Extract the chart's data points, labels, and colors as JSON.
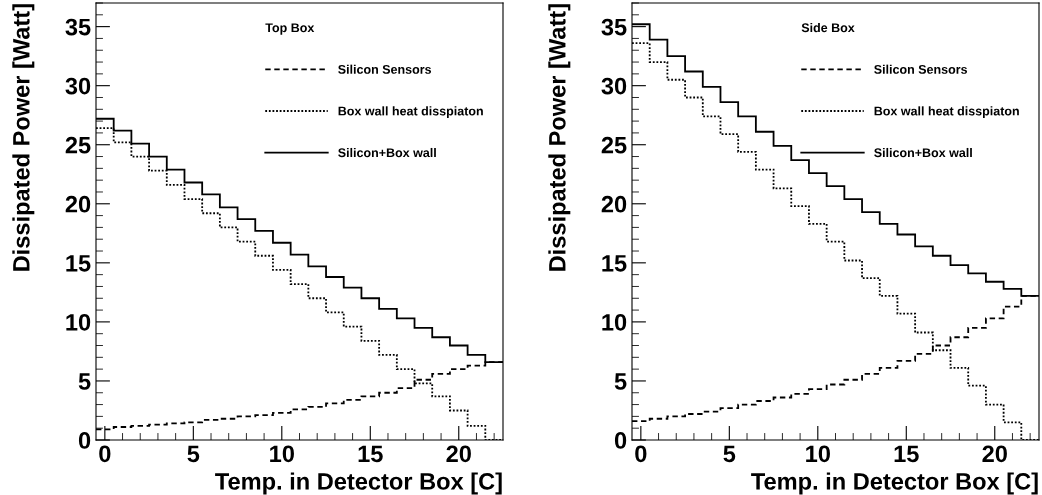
{
  "chart_data": [
    {
      "type": "histogram",
      "legend_title": "Top Box",
      "xlabel": "Temp. in Detector Box [C]",
      "ylabel": "Dissipated Power [Watt]",
      "bins": [
        -0.5,
        0.5,
        1.5,
        2.5,
        3.5,
        4.5,
        5.5,
        6.5,
        7.5,
        8.5,
        9.5,
        10.5,
        11.5,
        12.5,
        13.5,
        14.5,
        15.5,
        16.5,
        17.5,
        18.5,
        19.5,
        20.5,
        21.5,
        22.5
      ],
      "xlim": [
        -0.5,
        22.5
      ],
      "xticks": [
        0,
        5,
        10,
        15,
        20
      ],
      "ylim": [
        0,
        37
      ],
      "yticks": [
        0,
        5,
        10,
        15,
        20,
        25,
        30,
        35
      ],
      "legend": "top right",
      "grid": false,
      "series": [
        {
          "name": "Silicon Sensors",
          "color": "#000000",
          "line_style": "dashed",
          "values": [
            0.9,
            1.1,
            1.2,
            1.3,
            1.4,
            1.5,
            1.7,
            1.8,
            2.0,
            2.1,
            2.3,
            2.6,
            2.8,
            3.1,
            3.4,
            3.7,
            4.0,
            4.4,
            5.1,
            5.6,
            6.0,
            6.3,
            6.6
          ]
        },
        {
          "name": "Box wall heat disspiaton",
          "color": "#000000",
          "line_style": "dotted",
          "values": [
            26.4,
            25.2,
            24.0,
            22.8,
            21.6,
            20.4,
            19.2,
            18.0,
            16.8,
            15.6,
            14.4,
            13.2,
            12.0,
            10.8,
            9.6,
            8.4,
            7.2,
            6.0,
            4.8,
            3.7,
            2.5,
            1.2,
            0
          ]
        },
        {
          "name": "Silicon+Box wall",
          "color": "#000000",
          "line_style": "solid",
          "values": [
            27.2,
            26.2,
            25.1,
            24.0,
            22.9,
            21.8,
            20.8,
            19.7,
            18.7,
            17.7,
            16.7,
            15.7,
            14.7,
            13.8,
            12.9,
            12.0,
            11.1,
            10.3,
            9.5,
            8.7,
            8.0,
            7.2,
            6.6
          ]
        }
      ]
    },
    {
      "type": "histogram",
      "legend_title": "Side Box",
      "xlabel": "Temp. in Detector Box [C]",
      "ylabel": "Dissipated Power [Watt]",
      "bins": [
        -0.5,
        0.5,
        1.5,
        2.5,
        3.5,
        4.5,
        5.5,
        6.5,
        7.5,
        8.5,
        9.5,
        10.5,
        11.5,
        12.5,
        13.5,
        14.5,
        15.5,
        16.5,
        17.5,
        18.5,
        19.5,
        20.5,
        21.5,
        22.5
      ],
      "xlim": [
        -0.5,
        22.5
      ],
      "xticks": [
        0,
        5,
        10,
        15,
        20
      ],
      "ylim": [
        0,
        37
      ],
      "yticks": [
        0,
        5,
        10,
        15,
        20,
        25,
        30,
        35
      ],
      "legend": "top right",
      "grid": false,
      "series": [
        {
          "name": "Silicon Sensors",
          "color": "#000000",
          "line_style": "dashed",
          "values": [
            1.6,
            1.8,
            2.0,
            2.2,
            2.4,
            2.7,
            3.0,
            3.3,
            3.6,
            3.9,
            4.3,
            4.7,
            5.1,
            5.6,
            6.1,
            6.7,
            7.3,
            8.0,
            8.7,
            9.5,
            10.3,
            11.3,
            12.2
          ]
        },
        {
          "name": "Box wall heat disspiaton",
          "color": "#000000",
          "line_style": "dotted",
          "values": [
            33.6,
            32.0,
            30.5,
            29.0,
            27.4,
            25.9,
            24.4,
            22.9,
            21.3,
            19.8,
            18.3,
            16.8,
            15.2,
            13.7,
            12.2,
            10.7,
            9.1,
            7.6,
            6.1,
            4.6,
            3.0,
            1.5,
            0
          ]
        },
        {
          "name": "Silicon+Box wall",
          "color": "#000000",
          "line_style": "solid",
          "values": [
            35.2,
            33.9,
            32.5,
            31.2,
            29.9,
            28.6,
            27.4,
            26.1,
            24.9,
            23.7,
            22.6,
            21.5,
            20.4,
            19.3,
            18.3,
            17.4,
            16.4,
            15.6,
            14.8,
            14.1,
            13.4,
            12.8,
            12.2
          ]
        }
      ]
    }
  ]
}
